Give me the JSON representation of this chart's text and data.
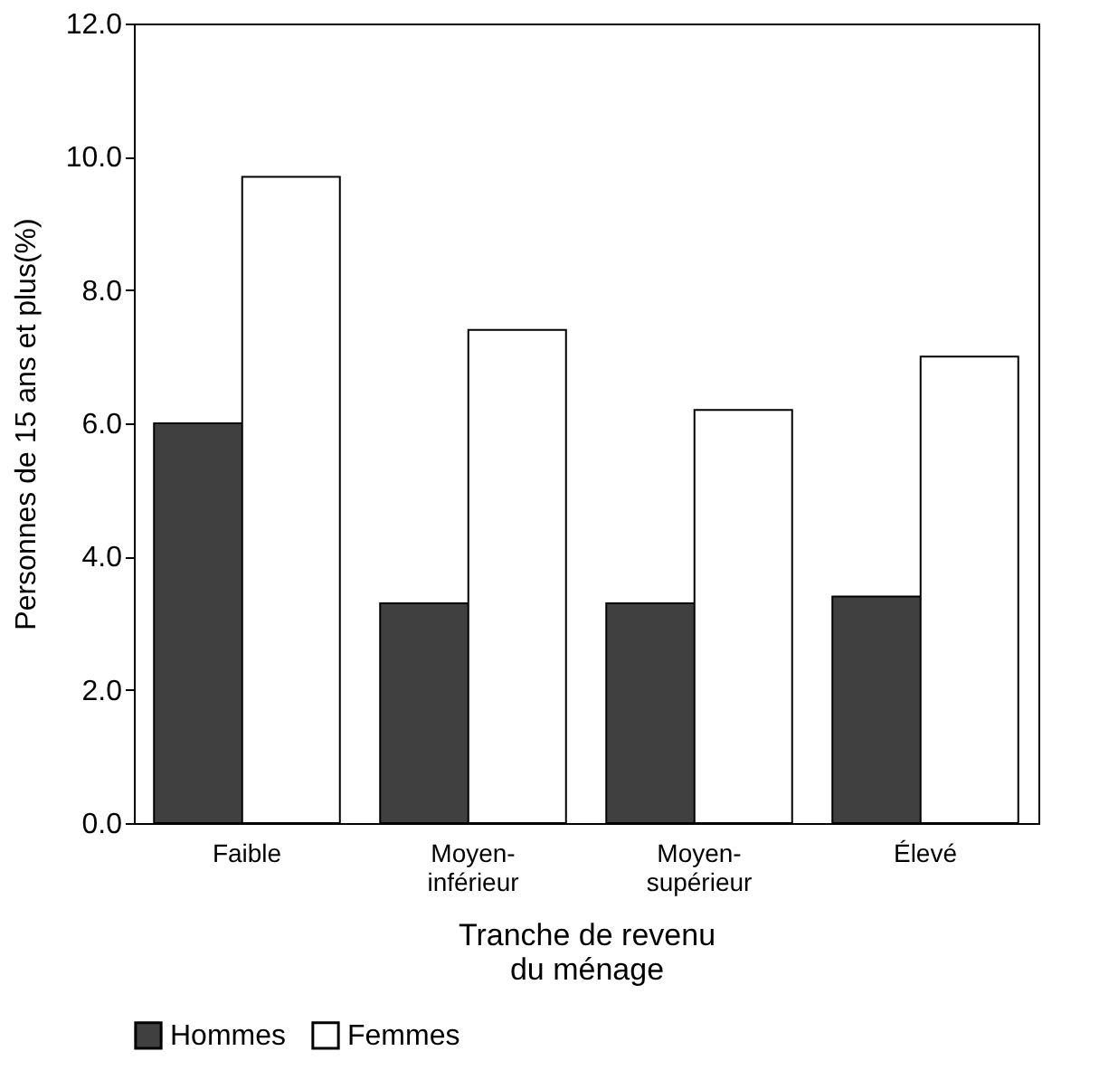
{
  "chart_data": {
    "type": "bar",
    "xlabel": "Tranche de revenu du ménage",
    "ylabel": "Personnes de 15 ans et plus(%)",
    "categories": [
      "Faible",
      "Moyen-inférieur",
      "Moyen-supérieur",
      "Élevé"
    ],
    "series": [
      {
        "name": "Hommes",
        "color": "#404040",
        "values": [
          6.0,
          3.3,
          3.3,
          3.4
        ]
      },
      {
        "name": "Femmes",
        "color": "#ffffff",
        "values": [
          9.7,
          7.4,
          6.2,
          7.0
        ]
      }
    ],
    "ylim": [
      0,
      12
    ],
    "yticks": [
      {
        "value": 0,
        "label": "0.0"
      },
      {
        "value": 2,
        "label": "2.0"
      },
      {
        "value": 4,
        "label": "4.0"
      },
      {
        "value": 6,
        "label": "6.0"
      },
      {
        "value": 8,
        "label": "8.0"
      },
      {
        "value": 10,
        "label": "10.0"
      },
      {
        "value": 12,
        "label": "12.0"
      }
    ],
    "grid": false,
    "legend": "bottom left"
  }
}
